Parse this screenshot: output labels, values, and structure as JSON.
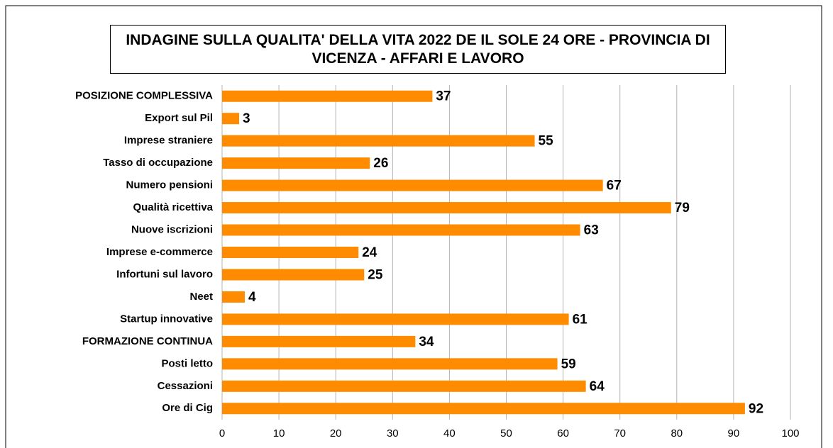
{
  "chart_data": {
    "type": "bar",
    "orientation": "horizontal",
    "title": "INDAGINE SULLA QUALITA' DELLA VITA 2022 DE IL SOLE 24 ORE - PROVINCIA DI VICENZA - AFFARI E LAVORO",
    "categories": [
      "POSIZIONE COMPLESSIVA",
      "Export sul Pil",
      "Imprese straniere",
      "Tasso di occupazione",
      "Numero pensioni",
      "Qualità ricettiva",
      "Nuove iscrizioni",
      "Imprese e-commerce",
      "Infortuni sul lavoro",
      "Neet",
      "Startup innovative",
      "FORMAZIONE CONTINUA",
      "Posti letto",
      "Cessazioni",
      "Ore di Cig"
    ],
    "values": [
      37,
      3,
      55,
      26,
      67,
      79,
      63,
      24,
      25,
      4,
      61,
      34,
      59,
      64,
      92
    ],
    "color": "#ff8c00",
    "xlim": [
      0,
      100
    ],
    "xticks": [
      0,
      10,
      20,
      30,
      40,
      50,
      60,
      70,
      80,
      90,
      100
    ],
    "grid": true
  }
}
